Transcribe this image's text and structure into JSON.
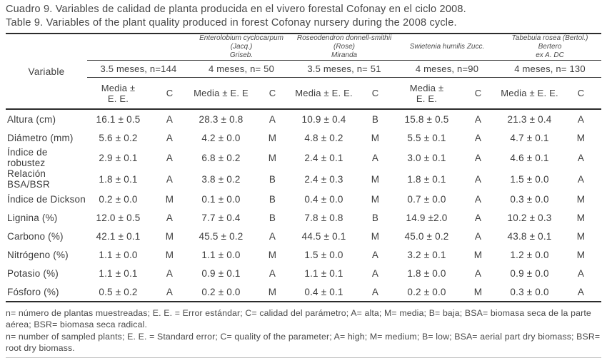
{
  "title": {
    "es": "Cuadro 9. Variables de calidad de planta producida en el vivero forestal Cofonay en el ciclo 2008.",
    "en": "Table 9. Variables of the plant quality produced in forest Cofonay nursery during the 2008 cycle."
  },
  "table": {
    "variable_header": "Variable",
    "groups": [
      {
        "species": "",
        "sample": "3.5 meses, n=144",
        "media_header": "Media ±\nE. E.",
        "c_header": "C"
      },
      {
        "species": "Enterolobium cyclocarpum (Jacq.)\nGriseb.",
        "sample": "4 meses, n= 50",
        "media_header": "Media ± E. E",
        "c_header": "C"
      },
      {
        "species": "Roseodendron donnell-smithii (Rose)\nMiranda",
        "sample": "3.5 meses, n= 51",
        "media_header": "Media ± E. E.",
        "c_header": "C"
      },
      {
        "species": "Swietenia humilis Zucc.",
        "sample": "4 meses, n=90",
        "media_header": "Media ±\nE. E.",
        "c_header": "C"
      },
      {
        "species": "Tabebuia rosea (Bertol.) Bertero\nex A. DC",
        "sample": "4 meses, n= 130",
        "media_header": "Media ± E. E.",
        "c_header": "C"
      }
    ],
    "rows": [
      {
        "variable": "Altura (cm)",
        "values": [
          {
            "media": "16.1 ± 0.5",
            "c": "A"
          },
          {
            "media": "28.3 ± 0.8",
            "c": "A"
          },
          {
            "media": "10.9 ± 0.4",
            "c": "B"
          },
          {
            "media": "15.8 ± 0.5",
            "c": "A"
          },
          {
            "media": "21.3 ± 0.4",
            "c": "A"
          }
        ]
      },
      {
        "variable": "Diámetro (mm)",
        "values": [
          {
            "media": "5.6 ± 0.2",
            "c": "A"
          },
          {
            "media": "4.2 ± 0.0",
            "c": "M"
          },
          {
            "media": "4.8 ± 0.2",
            "c": "M"
          },
          {
            "media": "5.5 ± 0.1",
            "c": "A"
          },
          {
            "media": "4.7 ± 0.1",
            "c": "M"
          }
        ]
      },
      {
        "variable": "Índice de robustez",
        "values": [
          {
            "media": "2.9 ± 0.1",
            "c": "A"
          },
          {
            "media": "6.8 ± 0.2",
            "c": "M"
          },
          {
            "media": "2.4 ± 0.1",
            "c": "A"
          },
          {
            "media": "3.0 ± 0.1",
            "c": "A"
          },
          {
            "media": "4.6 ± 0.1",
            "c": "A"
          }
        ]
      },
      {
        "variable": "Relación BSA/BSR",
        "values": [
          {
            "media": "1.8 ± 0.1",
            "c": "A"
          },
          {
            "media": "3.8 ± 0.2",
            "c": "B"
          },
          {
            "media": "2.4 ± 0.3",
            "c": "M"
          },
          {
            "media": "1.8 ± 0.1",
            "c": "A"
          },
          {
            "media": "1.5 ± 0.0",
            "c": "A"
          }
        ]
      },
      {
        "variable": "Índice de Dickson",
        "values": [
          {
            "media": "0.2 ± 0.0",
            "c": "M"
          },
          {
            "media": "0.1 ± 0.0",
            "c": "B"
          },
          {
            "media": "0.4 ± 0.0",
            "c": "M"
          },
          {
            "media": "0.7 ± 0.0",
            "c": "A"
          },
          {
            "media": "0.3 ± 0.0",
            "c": "M"
          }
        ]
      },
      {
        "variable": "Lignina (%)",
        "values": [
          {
            "media": "12.0 ± 0.5",
            "c": "A"
          },
          {
            "media": "7.7 ± 0.4",
            "c": "B"
          },
          {
            "media": "7.8 ± 0.8",
            "c": "B"
          },
          {
            "media": "14.9 ±2.0",
            "c": "A"
          },
          {
            "media": "10.2 ± 0.3",
            "c": "M"
          }
        ]
      },
      {
        "variable": "Carbono (%)",
        "values": [
          {
            "media": "42.1 ± 0.1",
            "c": "M"
          },
          {
            "media": "45.5 ± 0.2",
            "c": "A"
          },
          {
            "media": "44.5 ± 0.1",
            "c": "M"
          },
          {
            "media": "45.0 ± 0.2",
            "c": "A"
          },
          {
            "media": "43.8 ± 0.1",
            "c": "M"
          }
        ]
      },
      {
        "variable": "Nitrógeno (%)",
        "values": [
          {
            "media": "1.1 ± 0.0",
            "c": "M"
          },
          {
            "media": "1.1 ± 0.0",
            "c": "M"
          },
          {
            "media": "1.5 ± 0.0",
            "c": "A"
          },
          {
            "media": "3.2 ± 0.1",
            "c": "M"
          },
          {
            "media": "1.2 ± 0.0",
            "c": "M"
          }
        ]
      },
      {
        "variable": "Potasio (%)",
        "values": [
          {
            "media": "1.1 ± 0.1",
            "c": "A"
          },
          {
            "media": "0.9 ± 0.1",
            "c": "A"
          },
          {
            "media": "1.1 ± 0.1",
            "c": "A"
          },
          {
            "media": "1.8 ± 0.0",
            "c": "A"
          },
          {
            "media": "0.9 ± 0.0",
            "c": "A"
          }
        ]
      },
      {
        "variable": "Fósforo (%)",
        "values": [
          {
            "media": "0.5 ± 0.2",
            "c": "A"
          },
          {
            "media": "0.2 ± 0.0",
            "c": "M"
          },
          {
            "media": "0.4 ± 0.1",
            "c": "A"
          },
          {
            "media": "0.2 ± 0.0",
            "c": "M"
          },
          {
            "media": "0.3 ± 0.0",
            "c": "A"
          }
        ]
      }
    ]
  },
  "footnotes": {
    "es": "n= número de plantas muestreadas; E. E. = Error estándar; C= calidad del parámetro; A= alta; M= media; B= baja; BSA= biomasa seca de la parte aérea; BSR= biomasa seca radical.",
    "en": "n= number of sampled plants; E. E. = Standard error; C= quality of the parameter; A= high; M= medium; B= low; BSA= aerial part dry biomass; BSR= root dry biomass."
  }
}
